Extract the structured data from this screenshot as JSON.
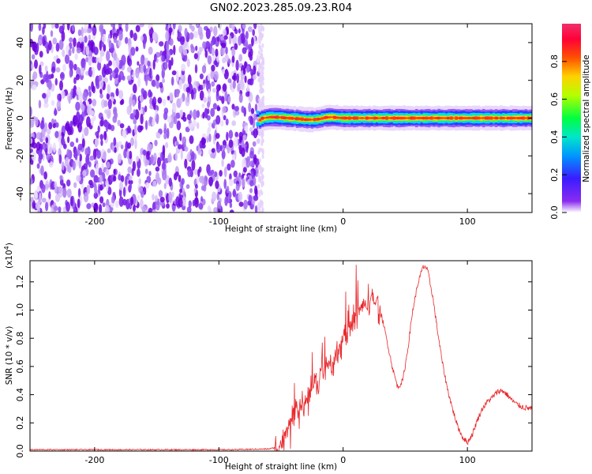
{
  "title": "GN02.2023.285.09.23.R04",
  "chart_data": [
    {
      "type": "heatmap",
      "xlabel": "Height of straight line (km)",
      "ylabel": "Frequency (Hz)",
      "xlim": [
        -252,
        152
      ],
      "ylim": [
        -50,
        50
      ],
      "xticks": [
        -200,
        -100,
        0,
        100
      ],
      "yticks": [
        -40,
        -20,
        0,
        20,
        40
      ],
      "noise_region_x": [
        -252,
        -68
      ],
      "signal_ridge": {
        "x": [
          -68,
          -65,
          -60,
          -55,
          -50,
          -45,
          -40,
          -35,
          -30,
          -25,
          -20,
          -15,
          -10,
          -5,
          0,
          10,
          20,
          30,
          40,
          60,
          80,
          100,
          120,
          140,
          152
        ],
        "y": [
          -1,
          0,
          0.5,
          0.5,
          0.3,
          0,
          -0.2,
          -0.5,
          -0.8,
          -0.8,
          -0.5,
          0.3,
          0.5,
          0.2,
          0,
          0,
          0,
          0,
          0,
          0,
          0,
          0,
          0,
          0,
          0
        ]
      },
      "colorbar": {
        "label": "Normalized spectral amplitude",
        "range": [
          0.0,
          1.0
        ],
        "ticks": [
          0.0,
          0.2,
          0.4,
          0.6,
          0.8
        ],
        "colors": [
          "#ffffff",
          "#7a00e6",
          "#1b3cff",
          "#00c8ff",
          "#00ff60",
          "#c8ff00",
          "#ffd000",
          "#ff5a00",
          "#ff0040",
          "#f0306a"
        ]
      }
    },
    {
      "type": "line",
      "xlabel": "Height of straight line (km)",
      "ylabel": "SNR (10 * v/v)",
      "yscale_label": "(x10",
      "yscale_exp": "4",
      "yscale_close": ")",
      "xlim": [
        -252,
        152
      ],
      "ylim": [
        0,
        1.35
      ],
      "xticks": [
        -200,
        -100,
        0,
        100
      ],
      "yticks": [
        0.0,
        0.2,
        0.4,
        0.6,
        0.8,
        1.0,
        1.2
      ],
      "color": "#e8262a",
      "series": [
        {
          "x": [
            -252,
            -150,
            -90,
            -60,
            -52,
            -48,
            -44,
            -40,
            -38,
            -36,
            -34,
            -32,
            -30,
            -28,
            -26,
            -24,
            -22,
            -20,
            -18,
            -16,
            -14,
            -12,
            -10,
            -8,
            -6,
            -4,
            -2,
            0,
            5,
            10,
            15,
            20,
            25,
            28,
            32,
            36,
            40,
            44,
            48,
            52,
            56,
            60,
            64,
            66,
            68,
            72,
            76,
            80,
            84,
            88,
            92,
            96,
            100,
            104,
            108,
            112,
            116,
            120,
            124,
            128,
            132,
            136,
            140,
            145,
            152
          ],
          "y": [
            0.01,
            0.01,
            0.01,
            0.015,
            0.03,
            0.08,
            0.15,
            0.2,
            0.28,
            0.25,
            0.35,
            0.3,
            0.4,
            0.36,
            0.46,
            0.44,
            0.5,
            0.48,
            0.55,
            0.52,
            0.6,
            0.58,
            0.64,
            0.62,
            0.7,
            0.68,
            0.75,
            0.8,
            0.88,
            0.95,
            1.02,
            1.05,
            1.08,
            1.04,
            0.92,
            0.75,
            0.58,
            0.45,
            0.5,
            0.72,
            1.0,
            1.18,
            1.3,
            1.31,
            1.28,
            1.1,
            0.85,
            0.62,
            0.44,
            0.3,
            0.18,
            0.1,
            0.06,
            0.12,
            0.22,
            0.3,
            0.35,
            0.38,
            0.42,
            0.43,
            0.4,
            0.36,
            0.33,
            0.31,
            0.3
          ]
        }
      ]
    }
  ]
}
